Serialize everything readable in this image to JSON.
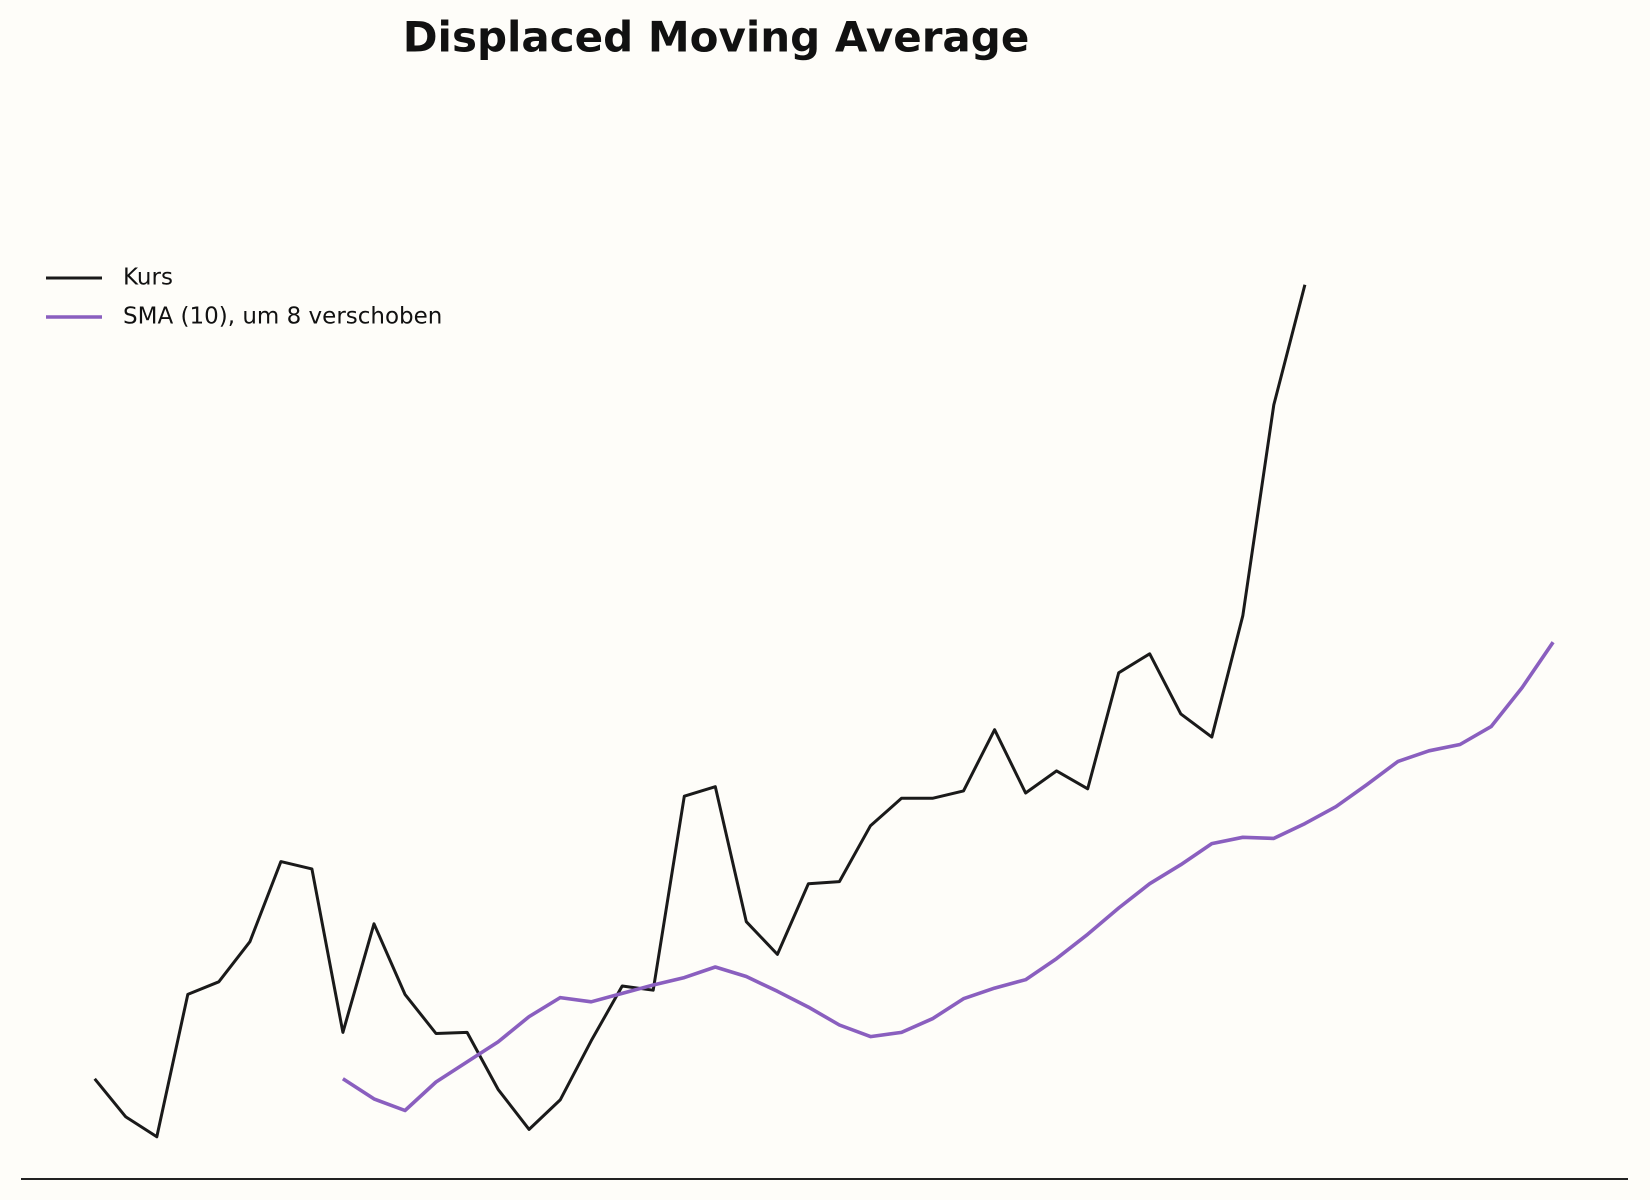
{
  "chart_data": {
    "type": "line",
    "title": "Displaced Moving Average",
    "series": [
      {
        "name": "Kurs",
        "color": "#1a1a1a",
        "values": [
          9.5,
          5.9,
          4.0,
          17.5,
          18.7,
          22.5,
          30.1,
          29.4,
          13.9,
          24.2,
          17.5,
          13.8,
          13.9,
          8.5,
          4.7,
          7.5,
          13.1,
          18.3,
          17.9,
          36.3,
          37.2,
          24.4,
          21.3,
          28.0,
          28.2,
          33.5,
          36.1,
          36.1,
          36.8,
          42.6,
          36.6,
          38.7,
          37.0,
          48.0,
          49.8,
          44.1,
          41.9,
          53.4,
          73.4,
          84.8,
          null,
          null,
          null,
          null,
          null,
          null,
          null,
          null
        ]
      },
      {
        "name": "SMA (10), um 8 verschoben",
        "color": "#8a5fbf",
        "values": [
          null,
          null,
          null,
          null,
          null,
          null,
          null,
          null,
          9.5,
          7.6,
          6.5,
          9.2,
          11.1,
          13.0,
          15.4,
          17.2,
          16.8,
          17.6,
          18.4,
          19.1,
          20.1,
          19.2,
          17.8,
          16.3,
          14.6,
          13.5,
          13.9,
          15.2,
          17.1,
          18.1,
          18.9,
          20.9,
          23.2,
          25.7,
          28.0,
          29.8,
          31.8,
          32.4,
          32.3,
          33.7,
          35.3,
          37.4,
          39.6,
          40.6,
          41.2,
          42.9,
          46.6,
          50.9
        ]
      }
    ],
    "ylim": [
      0,
      100
    ],
    "legend": "upper left"
  }
}
